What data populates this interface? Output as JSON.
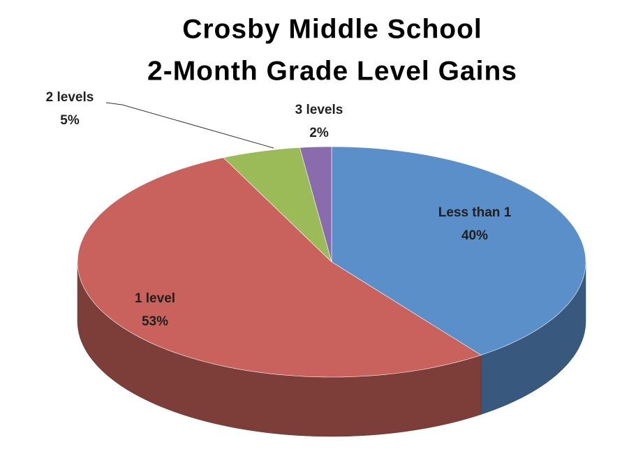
{
  "chart_data": {
    "type": "pie",
    "title": "Crosby Middle School",
    "subtitle": "2-Month Grade Level Gains",
    "categories": [
      "Less than 1",
      "1 level",
      "2 levels",
      "3 levels"
    ],
    "values": [
      40,
      53,
      5,
      2
    ],
    "value_labels": [
      "40%",
      "53%",
      "5%",
      "2%"
    ],
    "colors": [
      "#5b8fc9",
      "#c9625c",
      "#9bbb59",
      "#8a6bab"
    ]
  }
}
